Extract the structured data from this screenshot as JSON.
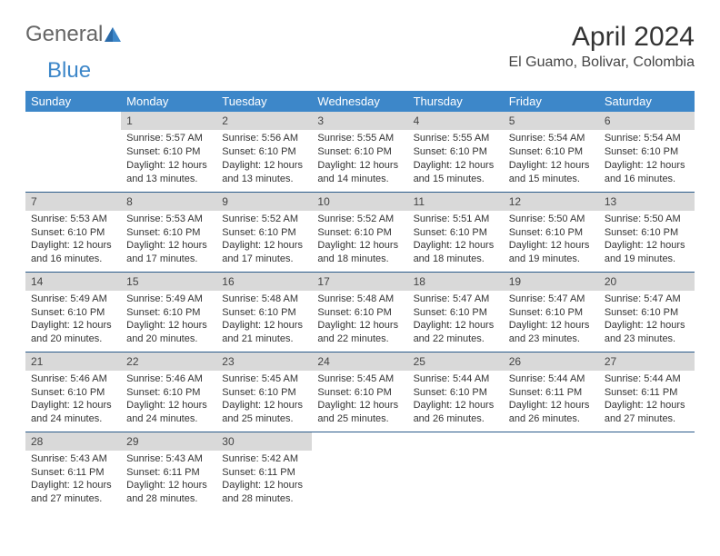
{
  "logo": {
    "text1": "General",
    "text2": "Blue",
    "accent": "#3d87c9"
  },
  "title": "April 2024",
  "location": "El Guamo, Bolivar, Colombia",
  "colors": {
    "header_bg": "#3d87c9",
    "header_fg": "#ffffff",
    "daynum_bg": "#d9d9d9",
    "row_border": "#2a5b8a",
    "text": "#333333"
  },
  "weekdays": [
    "Sunday",
    "Monday",
    "Tuesday",
    "Wednesday",
    "Thursday",
    "Friday",
    "Saturday"
  ],
  "weeks": [
    [
      {
        "empty": true
      },
      {
        "n": "1",
        "sr": "5:57 AM",
        "ss": "6:10 PM",
        "dl": "12 hours and 13 minutes."
      },
      {
        "n": "2",
        "sr": "5:56 AM",
        "ss": "6:10 PM",
        "dl": "12 hours and 13 minutes."
      },
      {
        "n": "3",
        "sr": "5:55 AM",
        "ss": "6:10 PM",
        "dl": "12 hours and 14 minutes."
      },
      {
        "n": "4",
        "sr": "5:55 AM",
        "ss": "6:10 PM",
        "dl": "12 hours and 15 minutes."
      },
      {
        "n": "5",
        "sr": "5:54 AM",
        "ss": "6:10 PM",
        "dl": "12 hours and 15 minutes."
      },
      {
        "n": "6",
        "sr": "5:54 AM",
        "ss": "6:10 PM",
        "dl": "12 hours and 16 minutes."
      }
    ],
    [
      {
        "n": "7",
        "sr": "5:53 AM",
        "ss": "6:10 PM",
        "dl": "12 hours and 16 minutes."
      },
      {
        "n": "8",
        "sr": "5:53 AM",
        "ss": "6:10 PM",
        "dl": "12 hours and 17 minutes."
      },
      {
        "n": "9",
        "sr": "5:52 AM",
        "ss": "6:10 PM",
        "dl": "12 hours and 17 minutes."
      },
      {
        "n": "10",
        "sr": "5:52 AM",
        "ss": "6:10 PM",
        "dl": "12 hours and 18 minutes."
      },
      {
        "n": "11",
        "sr": "5:51 AM",
        "ss": "6:10 PM",
        "dl": "12 hours and 18 minutes."
      },
      {
        "n": "12",
        "sr": "5:50 AM",
        "ss": "6:10 PM",
        "dl": "12 hours and 19 minutes."
      },
      {
        "n": "13",
        "sr": "5:50 AM",
        "ss": "6:10 PM",
        "dl": "12 hours and 19 minutes."
      }
    ],
    [
      {
        "n": "14",
        "sr": "5:49 AM",
        "ss": "6:10 PM",
        "dl": "12 hours and 20 minutes."
      },
      {
        "n": "15",
        "sr": "5:49 AM",
        "ss": "6:10 PM",
        "dl": "12 hours and 20 minutes."
      },
      {
        "n": "16",
        "sr": "5:48 AM",
        "ss": "6:10 PM",
        "dl": "12 hours and 21 minutes."
      },
      {
        "n": "17",
        "sr": "5:48 AM",
        "ss": "6:10 PM",
        "dl": "12 hours and 22 minutes."
      },
      {
        "n": "18",
        "sr": "5:47 AM",
        "ss": "6:10 PM",
        "dl": "12 hours and 22 minutes."
      },
      {
        "n": "19",
        "sr": "5:47 AM",
        "ss": "6:10 PM",
        "dl": "12 hours and 23 minutes."
      },
      {
        "n": "20",
        "sr": "5:47 AM",
        "ss": "6:10 PM",
        "dl": "12 hours and 23 minutes."
      }
    ],
    [
      {
        "n": "21",
        "sr": "5:46 AM",
        "ss": "6:10 PM",
        "dl": "12 hours and 24 minutes."
      },
      {
        "n": "22",
        "sr": "5:46 AM",
        "ss": "6:10 PM",
        "dl": "12 hours and 24 minutes."
      },
      {
        "n": "23",
        "sr": "5:45 AM",
        "ss": "6:10 PM",
        "dl": "12 hours and 25 minutes."
      },
      {
        "n": "24",
        "sr": "5:45 AM",
        "ss": "6:10 PM",
        "dl": "12 hours and 25 minutes."
      },
      {
        "n": "25",
        "sr": "5:44 AM",
        "ss": "6:10 PM",
        "dl": "12 hours and 26 minutes."
      },
      {
        "n": "26",
        "sr": "5:44 AM",
        "ss": "6:11 PM",
        "dl": "12 hours and 26 minutes."
      },
      {
        "n": "27",
        "sr": "5:44 AM",
        "ss": "6:11 PM",
        "dl": "12 hours and 27 minutes."
      }
    ],
    [
      {
        "n": "28",
        "sr": "5:43 AM",
        "ss": "6:11 PM",
        "dl": "12 hours and 27 minutes."
      },
      {
        "n": "29",
        "sr": "5:43 AM",
        "ss": "6:11 PM",
        "dl": "12 hours and 28 minutes."
      },
      {
        "n": "30",
        "sr": "5:42 AM",
        "ss": "6:11 PM",
        "dl": "12 hours and 28 minutes."
      },
      {
        "empty": true
      },
      {
        "empty": true
      },
      {
        "empty": true
      },
      {
        "empty": true
      }
    ]
  ],
  "labels": {
    "sunrise": "Sunrise: ",
    "sunset": "Sunset: ",
    "daylight": "Daylight: "
  }
}
